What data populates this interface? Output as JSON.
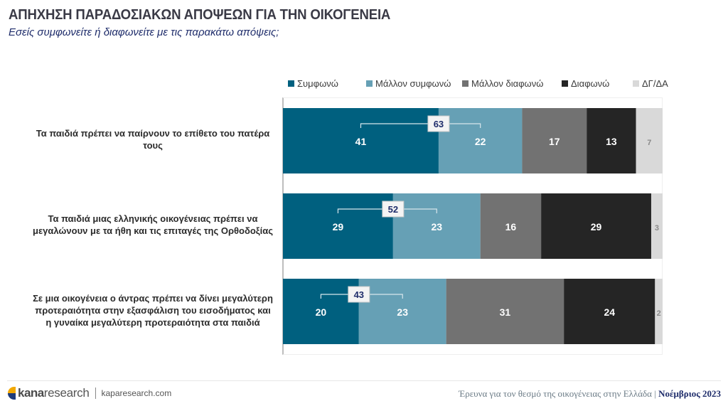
{
  "header": {
    "title": "ΑΠΗΧΗΣΗ ΠΑΡΑΔΟΣΙΑΚΩΝ ΑΠΟΨΕΩΝ ΓΙΑ ΤΗΝ ΟΙΚΟΓΕΝΕΙΑ",
    "subtitle": "Εσείς συμφωνείτε ή διαφωνείτε με τις παρακάτω απόψεις;"
  },
  "chart_data": {
    "type": "bar",
    "orientation": "horizontal",
    "stacked": true,
    "title": "ΑΠΗΧΗΣΗ ΠΑΡΑΔΟΣΙΑΚΩΝ ΑΠΟΨΕΩΝ ΓΙΑ ΤΗΝ ΟΙΚΟΓΕΝΕΙΑ",
    "subtitle": "Εσείς συμφωνείτε ή διαφωνείτε με τις παρακάτω απόψεις;",
    "xlabel": "",
    "ylabel": "",
    "xlim": [
      0,
      100
    ],
    "grid": false,
    "legend_position": "top",
    "categories": [
      "Τα παιδιά πρέπει να παίρνουν το επίθετο του πατέρα τους",
      "Τα παιδιά μιας ελληνικής οικογένειας πρέπει να μεγαλώνουν με τα ήθη και τις επιταγές της Ορθοδοξίας",
      "Σε μια οικογένεια ο άντρας πρέπει να δίνει μεγαλύτερη προτεραιότητα στην εξασφάλιση του εισοδήματος και η γυναίκα μεγαλύτερη προτεραιότητα στα παιδιά"
    ],
    "category_lines": [
      [
        "Τα παιδιά πρέπει να παίρνουν το επίθετο του πατέρα",
        "τους"
      ],
      [
        "Τα παιδιά μιας ελληνικής οικογένειας πρέπει να",
        "μεγαλώνουν με τα ήθη και τις επιταγές της Ορθοδοξίας"
      ],
      [
        "Σε μια οικογένεια ο άντρας πρέπει να δίνει μεγαλύτερη",
        "προτεραιότητα στην εξασφάλιση του εισοδήματος και",
        "η γυναίκα μεγαλύτερη προτεραιότητα στα παιδιά"
      ]
    ],
    "series": [
      {
        "name": "Συμφωνώ",
        "color": "#00607f",
        "label_color": "#ffffff",
        "values": [
          41,
          29,
          20
        ]
      },
      {
        "name": "Μάλλον συμφωνώ",
        "color": "#66a0b5",
        "label_color": "#ffffff",
        "values": [
          22,
          23,
          23
        ]
      },
      {
        "name": "Μάλλον διαφωνώ",
        "color": "#727272",
        "label_color": "#ffffff",
        "values": [
          17,
          16,
          31
        ]
      },
      {
        "name": "Διαφωνώ",
        "color": "#252525",
        "label_color": "#ffffff",
        "values": [
          13,
          29,
          24
        ]
      },
      {
        "name": "ΔΓ/ΔΑ",
        "color": "#d9d9d9",
        "label_color": "#8a8a8a",
        "values": [
          7,
          3,
          2
        ]
      }
    ],
    "annotations": [
      {
        "type": "sum-bracket",
        "series": [
          "Συμφωνώ",
          "Μάλλον συμφωνώ"
        ],
        "category_index": 0,
        "value": 63
      },
      {
        "type": "sum-bracket",
        "series": [
          "Συμφωνώ",
          "Μάλλον συμφωνώ"
        ],
        "category_index": 1,
        "value": 52
      },
      {
        "type": "sum-bracket",
        "series": [
          "Συμφωνώ",
          "Μάλλον συμφωνώ"
        ],
        "category_index": 2,
        "value": 43
      }
    ]
  },
  "footer": {
    "brand_bold": "kana",
    "brand_light": "research",
    "url": "kaparesearch.com",
    "survey": "Έρευνα για τον θεσμό της οικογένειας στην Ελλάδα",
    "separator": "|",
    "date": "Νοέμβριος 2023"
  }
}
